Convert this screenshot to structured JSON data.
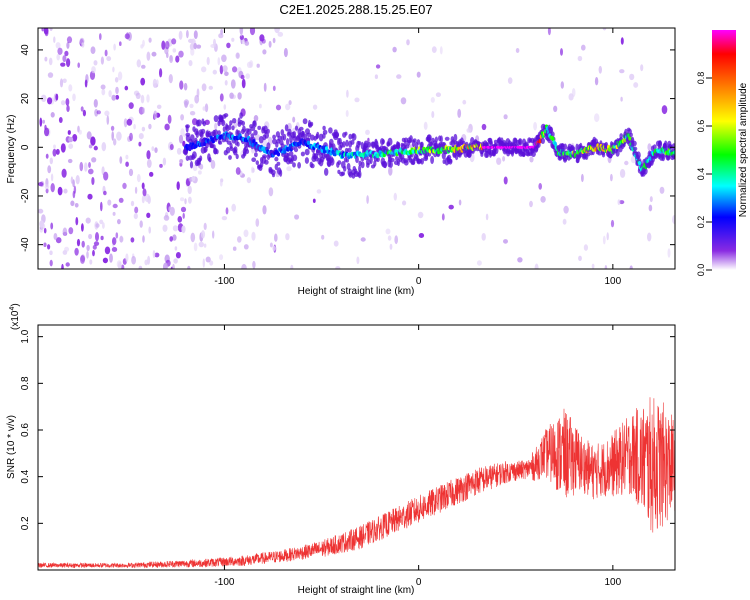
{
  "title": "C2E1.2025.288.15.25.E07",
  "chart_data": [
    {
      "type": "heatmap",
      "name": "spectrogram",
      "xlabel": "Height of straight line (km)",
      "ylabel": "Frequency (Hz)",
      "xlim": [
        -196,
        132
      ],
      "ylim": [
        -50,
        49
      ],
      "xticks": [
        -100,
        0,
        100
      ],
      "yticks": [
        -40,
        -20,
        0,
        20,
        40
      ],
      "colorbar": {
        "label": "Normalized spectral amplitude",
        "range": [
          0,
          1
        ],
        "ticks": [
          "0.0",
          "0.2",
          "0.4",
          "0.6",
          "0.8"
        ],
        "colors": [
          "#ffffff",
          "#8a2be2",
          "#0000ff",
          "#00ffff",
          "#00ff00",
          "#ffff00",
          "#ff8000",
          "#ff0000",
          "#ff00ff"
        ]
      },
      "ridge": [
        {
          "x": -118,
          "f": 0,
          "amp": 0.25
        },
        {
          "x": -100,
          "f": 5,
          "amp": 0.3
        },
        {
          "x": -90,
          "f": 4,
          "amp": 0.3
        },
        {
          "x": -75,
          "f": -3,
          "amp": 0.3
        },
        {
          "x": -60,
          "f": 2,
          "amp": 0.3
        },
        {
          "x": -40,
          "f": -3,
          "amp": 0.35
        },
        {
          "x": -25,
          "f": -3,
          "amp": 0.45
        },
        {
          "x": -10,
          "f": -2,
          "amp": 0.5
        },
        {
          "x": 0,
          "f": -1,
          "amp": 0.55
        },
        {
          "x": 15,
          "f": -1,
          "amp": 0.6
        },
        {
          "x": 30,
          "f": 0,
          "amp": 0.75
        },
        {
          "x": 33,
          "f": 0,
          "amp": 1.0
        },
        {
          "x": 60,
          "f": 0,
          "amp": 1.0
        },
        {
          "x": 66,
          "f": 8,
          "amp": 0.55
        },
        {
          "x": 72,
          "f": -2,
          "amp": 0.45
        },
        {
          "x": 80,
          "f": -3,
          "amp": 0.6
        },
        {
          "x": 90,
          "f": 0,
          "amp": 0.75
        },
        {
          "x": 100,
          "f": -1,
          "amp": 0.6
        },
        {
          "x": 108,
          "f": 5,
          "amp": 0.5
        },
        {
          "x": 115,
          "f": -10,
          "amp": 0.45
        },
        {
          "x": 122,
          "f": -1,
          "amp": 0.5
        },
        {
          "x": 132,
          "f": -2,
          "amp": 0.5
        }
      ]
    },
    {
      "type": "line",
      "name": "snr",
      "xlabel": "Height of straight line (km)",
      "ylabel": "SNR (10 * v/v)",
      "ymultiplier": "(x10",
      "ymultiplier_exp": "4",
      "ymultiplier_close": ")",
      "xlim": [
        -196,
        132
      ],
      "ylim": [
        0,
        1.05
      ],
      "xticks": [
        -100,
        0,
        100
      ],
      "yticks": [
        0.2,
        0.4,
        0.6,
        0.8,
        1.0
      ],
      "color": "#ee3333",
      "series": [
        {
          "name": "mean",
          "x": [
            -196,
            -150,
            -110,
            -90,
            -70,
            -50,
            -30,
            -15,
            0,
            15,
            30,
            45,
            55,
            60,
            65,
            72,
            80,
            90,
            100,
            110,
            120,
            125,
            132
          ],
          "y": [
            0.02,
            0.02,
            0.03,
            0.04,
            0.06,
            0.09,
            0.14,
            0.2,
            0.26,
            0.32,
            0.38,
            0.42,
            0.43,
            0.45,
            0.5,
            0.5,
            0.48,
            0.42,
            0.45,
            0.5,
            0.45,
            0.45,
            0.45
          ]
        },
        {
          "name": "spread",
          "x": [
            -196,
            -150,
            -100,
            -60,
            -30,
            0,
            30,
            55,
            65,
            75,
            85,
            95,
            110,
            120,
            125,
            132
          ],
          "y": [
            0.01,
            0.01,
            0.02,
            0.03,
            0.05,
            0.06,
            0.06,
            0.04,
            0.1,
            0.2,
            0.12,
            0.12,
            0.18,
            0.3,
            0.28,
            0.2
          ]
        }
      ]
    }
  ]
}
